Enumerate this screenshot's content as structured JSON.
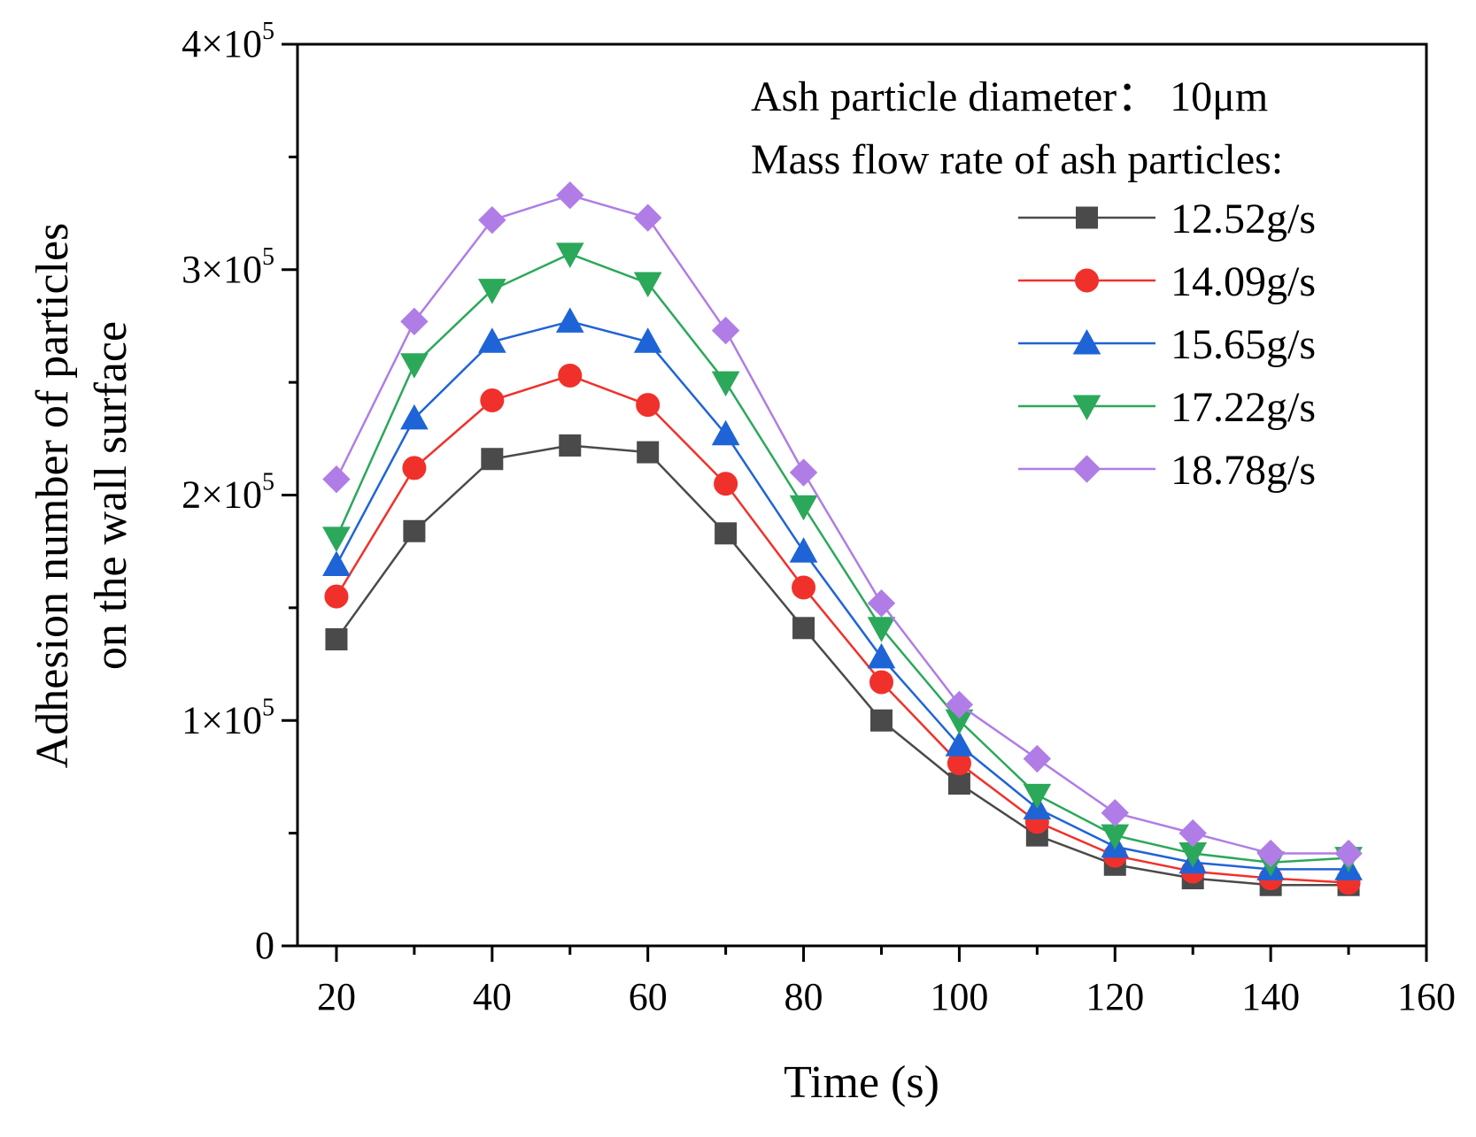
{
  "chart_data": {
    "type": "line",
    "xlabel": "Time (s)",
    "ylabel_lines": [
      "Adhesion number of particles",
      "on the wall surface"
    ],
    "xlim": [
      15,
      160
    ],
    "ylim": [
      0,
      400000
    ],
    "x_ticks": [
      20,
      40,
      60,
      80,
      100,
      120,
      140,
      160
    ],
    "y_ticks": [
      {
        "value": 0,
        "mantissa": "0",
        "base": "",
        "exp": ""
      },
      {
        "value": 100000,
        "mantissa": "1",
        "base": "×10",
        "exp": "5"
      },
      {
        "value": 200000,
        "mantissa": "2",
        "base": "×10",
        "exp": "5"
      },
      {
        "value": 300000,
        "mantissa": "3",
        "base": "×10",
        "exp": "5"
      },
      {
        "value": 400000,
        "mantissa": "4",
        "base": "×10",
        "exp": "5"
      }
    ],
    "annotation_lines": [
      "Ash particle diameter：  10μm",
      "Mass flow rate of ash particles:"
    ],
    "x": [
      20,
      30,
      40,
      50,
      60,
      70,
      80,
      90,
      100,
      110,
      120,
      130,
      140,
      150
    ],
    "series": [
      {
        "name": "12.52g/s",
        "marker": "square",
        "color": "#4a4a4a",
        "values": [
          136000,
          184000,
          216000,
          222000,
          219000,
          183000,
          141000,
          100000,
          72000,
          49000,
          36000,
          30000,
          27000,
          27000
        ]
      },
      {
        "name": "14.09g/s",
        "marker": "circle",
        "color": "#f0312b",
        "values": [
          155000,
          212000,
          242000,
          253000,
          240000,
          205000,
          159000,
          117000,
          81000,
          55000,
          40000,
          33000,
          30000,
          28000
        ]
      },
      {
        "name": "15.65g/s",
        "marker": "triangle-up",
        "color": "#1f64d6",
        "values": [
          169000,
          234000,
          268000,
          277000,
          268000,
          227000,
          175000,
          128000,
          89000,
          61000,
          44000,
          37000,
          34000,
          34000
        ]
      },
      {
        "name": "17.22g/s",
        "marker": "triangle-down",
        "color": "#2ca85a",
        "values": [
          181000,
          258000,
          291000,
          307000,
          294000,
          250000,
          195000,
          141000,
          100000,
          67000,
          49000,
          41000,
          37000,
          39000
        ]
      },
      {
        "name": "18.78g/s",
        "marker": "diamond",
        "color": "#b07de6",
        "values": [
          207000,
          277000,
          322000,
          333000,
          323000,
          273000,
          210000,
          152000,
          107000,
          83000,
          59000,
          50000,
          41000,
          41000
        ]
      }
    ]
  }
}
